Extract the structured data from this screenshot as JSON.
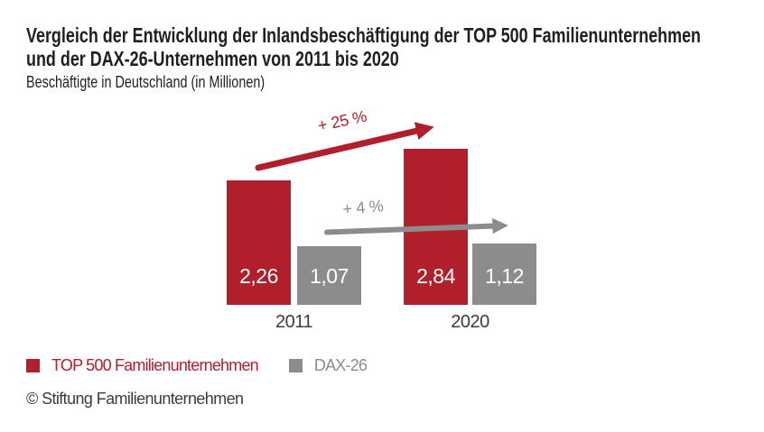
{
  "header": {
    "title_lines": [
      "Vergleich der Entwicklung der Inlandsbeschäftigung der TOP 500 Familienunternehmen",
      "und der DAX-26-Unternehmen von 2011 bis 2020"
    ],
    "subtitle": "Beschäftigte in Deutschland (in Millionen)"
  },
  "chart_data": {
    "type": "bar",
    "title": "Vergleich der Entwicklung der Inlandsbeschäftigung der TOP 500 Familienunternehmen und der DAX-26-Unternehmen von 2011 bis 2020",
    "ylabel": "Beschäftigte in Deutschland (in Millionen)",
    "categories": [
      "2011",
      "2020"
    ],
    "series": [
      {
        "name": "TOP 500 Familienunternehmen",
        "values": [
          2.26,
          2.84
        ],
        "labels": [
          "2,26",
          "2,84"
        ],
        "color": "#B11E2C"
      },
      {
        "name": "DAX-26",
        "values": [
          1.07,
          1.12
        ],
        "labels": [
          "1,07",
          "1,12"
        ],
        "color": "#8C8C8C"
      }
    ],
    "annotations": [
      {
        "text": "+ 25 %",
        "series": "TOP 500 Familienunternehmen"
      },
      {
        "text": "+ 4 %",
        "series": "DAX-26"
      }
    ],
    "grid": false,
    "y_axis_visible": false,
    "value_labels_inside_bars": true,
    "legend_position": "bottom-left"
  },
  "legend": {
    "items": [
      {
        "label": "TOP 500 Familienunternehmen",
        "color": "#B11E2C"
      },
      {
        "label": "DAX-26",
        "color": "#8C8C8C"
      }
    ]
  },
  "footer": {
    "copyright": "© Stiftung Familienunternehmen"
  },
  "colors": {
    "brand_red": "#B11E2C",
    "gray": "#8C8C8C",
    "title_text": "#1F1F1E",
    "body_text": "#3C3C3B",
    "value_label_text": "#FFFFFF",
    "background": "#FFFFFF"
  }
}
